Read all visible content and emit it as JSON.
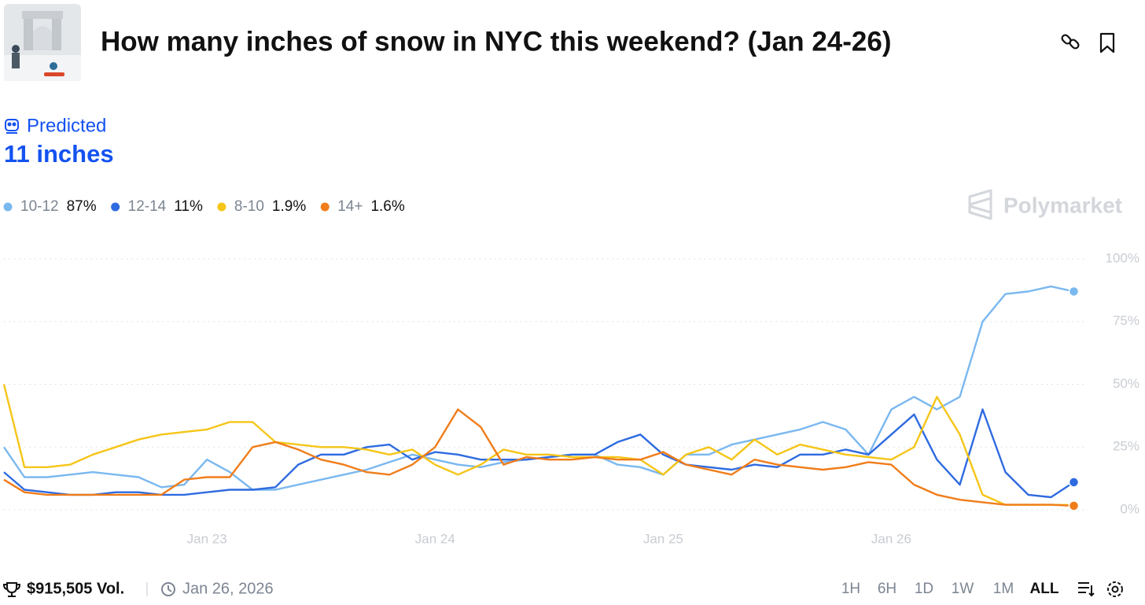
{
  "header": {
    "title": "How many inches of snow in NYC this weekend? (Jan 24-26)"
  },
  "prediction": {
    "label": "Predicted",
    "value": "11 inches"
  },
  "brand": "Polymarket",
  "chart_data": {
    "type": "line",
    "x": [
      22.11,
      22.2,
      22.3,
      22.4,
      22.5,
      22.6,
      22.7,
      22.8,
      22.9,
      23.0,
      23.1,
      23.2,
      23.3,
      23.4,
      23.5,
      23.6,
      23.7,
      23.8,
      23.9,
      24.0,
      24.1,
      24.2,
      24.3,
      24.4,
      24.5,
      24.6,
      24.7,
      24.8,
      24.9,
      25.0,
      25.1,
      25.2,
      25.3,
      25.4,
      25.5,
      25.6,
      25.7,
      25.8,
      25.9,
      26.0,
      26.1,
      26.2,
      26.3,
      26.4,
      26.5,
      26.6,
      26.7,
      26.8
    ],
    "xlim": [
      22.11,
      26.85
    ],
    "xticks": [
      {
        "value": 23,
        "label": "Jan 23"
      },
      {
        "value": 24,
        "label": "Jan 24"
      },
      {
        "value": 25,
        "label": "Jan 25"
      },
      {
        "value": 26,
        "label": "Jan 26"
      }
    ],
    "ylim": [
      0,
      100
    ],
    "yticks": [
      {
        "value": 0,
        "label": "0%"
      },
      {
        "value": 25,
        "label": "25%"
      },
      {
        "value": 50,
        "label": "50%"
      },
      {
        "value": 75,
        "label": "75%"
      },
      {
        "value": 100,
        "label": "100%"
      }
    ],
    "grid": true,
    "series": [
      {
        "name": "10-12",
        "color": "#7ab8f0",
        "current": {
          "value": 87,
          "label": "87%"
        },
        "values": [
          25,
          13,
          13,
          14,
          15,
          14,
          13,
          9,
          10,
          20,
          15,
          8,
          8,
          10,
          12,
          14,
          16,
          19,
          22,
          20,
          18,
          17,
          19,
          20,
          21,
          22,
          22,
          18,
          17,
          14,
          22,
          22,
          26,
          28,
          30,
          32,
          35,
          32,
          22,
          40,
          45,
          40,
          45,
          75,
          86,
          87,
          89,
          87
        ]
      },
      {
        "name": "12-14",
        "color": "#2f6be0",
        "current": {
          "value": 11,
          "label": "11%"
        },
        "values": [
          15,
          8,
          7,
          6,
          6,
          7,
          7,
          6,
          6,
          7,
          8,
          8,
          9,
          18,
          22,
          22,
          25,
          26,
          20,
          23,
          22,
          20,
          20,
          20,
          21,
          22,
          22,
          27,
          30,
          22,
          18,
          17,
          16,
          18,
          17,
          22,
          22,
          24,
          22,
          30,
          38,
          20,
          10,
          40,
          15,
          6,
          5,
          11
        ]
      },
      {
        "name": "8-10",
        "color": "#f5c518",
        "current": {
          "value": 1.9,
          "label": "1.9%"
        },
        "values": [
          50,
          17,
          17,
          18,
          22,
          25,
          28,
          30,
          31,
          32,
          35,
          35,
          27,
          26,
          25,
          25,
          24,
          22,
          24,
          18,
          14,
          18,
          24,
          22,
          22,
          21,
          21,
          21,
          20,
          14,
          22,
          25,
          20,
          28,
          22,
          26,
          24,
          22,
          21,
          20,
          25,
          45,
          30,
          6,
          2,
          2,
          2,
          1.9
        ]
      },
      {
        "name": "14+",
        "color": "#f07d1a",
        "current": {
          "value": 1.6,
          "label": "1.6%"
        },
        "values": [
          12,
          7,
          6,
          6,
          6,
          6,
          6,
          6,
          12,
          13,
          13,
          25,
          27,
          24,
          20,
          18,
          15,
          14,
          18,
          25,
          40,
          33,
          18,
          21,
          20,
          20,
          21,
          20,
          20,
          23,
          18,
          16,
          14,
          20,
          18,
          17,
          16,
          17,
          19,
          18,
          10,
          6,
          4,
          3,
          2,
          2,
          2,
          1.6
        ]
      }
    ]
  },
  "footer": {
    "volume": "$915,505 Vol.",
    "date": "Jan 26, 2026",
    "ranges": [
      "1H",
      "6H",
      "1D",
      "1W",
      "1M",
      "ALL"
    ],
    "selected_range": 5
  }
}
